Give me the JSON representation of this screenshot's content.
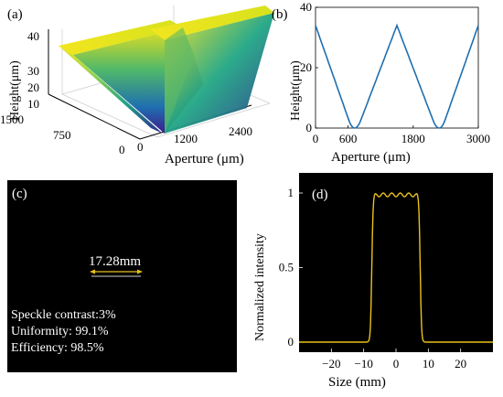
{
  "panels": {
    "a": {
      "label": "(a)",
      "zlabel": "Height(μm)",
      "xlabel": "Aperture (μm)",
      "z_ticks": [
        "0",
        "10",
        "20",
        "30",
        "40"
      ],
      "y_ticks": [
        "0",
        "750",
        "1500"
      ],
      "x_ticks": [
        "0",
        "1200",
        "2400"
      ],
      "colormap": [
        "#3d1a8c",
        "#1f78b4",
        "#21a685",
        "#8fd14f",
        "#f2e51f"
      ]
    },
    "b": {
      "label": "(b)",
      "line_color": "#1f6fb0",
      "chart_data": {
        "type": "line",
        "title": "",
        "xlabel": "Aperture (μm)",
        "ylabel": "Height(μm)",
        "xlim": [
          0,
          3000
        ],
        "ylim": [
          0,
          40
        ],
        "xticks": [
          "0",
          "600",
          "1800",
          "3000"
        ],
        "yticks": [
          "0",
          "20",
          "40"
        ],
        "x": [
          0,
          720,
          1500,
          2280,
          3000
        ],
        "y": [
          34,
          0,
          34,
          0,
          34
        ]
      }
    },
    "c": {
      "label": "(c)",
      "dimension": "17.28mm",
      "line_color": "#e8c11c",
      "lines": [
        "Speckle contrast:3%",
        "Uniformity: 99.1%",
        "Efficiency: 98.5%"
      ]
    },
    "d": {
      "label": "(d)",
      "line_color": "#e8c11c",
      "chart_data": {
        "type": "line",
        "title": "",
        "xlabel": "Size (mm)",
        "ylabel": "Normalized intensity",
        "xlim": [
          -30,
          30
        ],
        "ylim": [
          0,
          1
        ],
        "xticks": [
          "−20",
          "−10",
          "0",
          "10",
          "20"
        ],
        "yticks": [
          "0",
          "0.5",
          "1"
        ],
        "flat_top_edges_mm": [
          -7.5,
          7.5
        ],
        "peak": 1,
        "ripple": 0.025
      }
    }
  }
}
